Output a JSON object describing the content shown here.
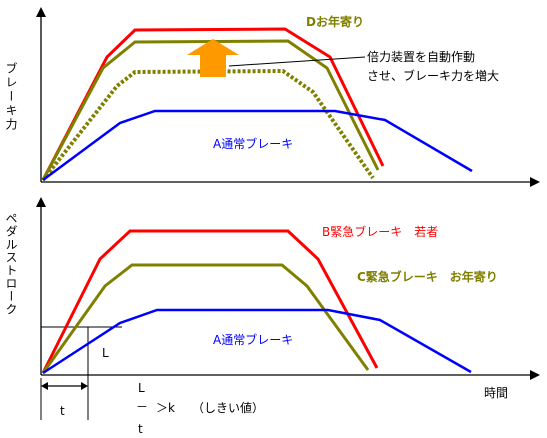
{
  "top_chart": {
    "y_axis_label": "ブレーキ力",
    "label_elderly": "Dお年寄り",
    "label_normal": "A通常ブレーキ",
    "callout_line1": "倍力装置を自動作動",
    "callout_line2": "させ、ブレーキ力を増大"
  },
  "bottom_chart": {
    "y_axis_label": "ペダルストローク",
    "label_young": "B緊急ブレーキ　若者",
    "label_elderly": "C緊急ブレーキ　お年寄り",
    "label_normal": "A通常ブレーキ",
    "x_axis_label": "時間",
    "label_L": "L",
    "label_t": "t",
    "formula_L": "L",
    "formula_dash": "－",
    "formula_t": "t",
    "formula_gt_k": "＞k",
    "formula_threshold": "（しきい値）"
  },
  "colors": {
    "red": "#ff0000",
    "olive": "#808000",
    "blue": "#0000ff",
    "arrow_orange": "#ff9900",
    "axis": "#000000"
  }
}
